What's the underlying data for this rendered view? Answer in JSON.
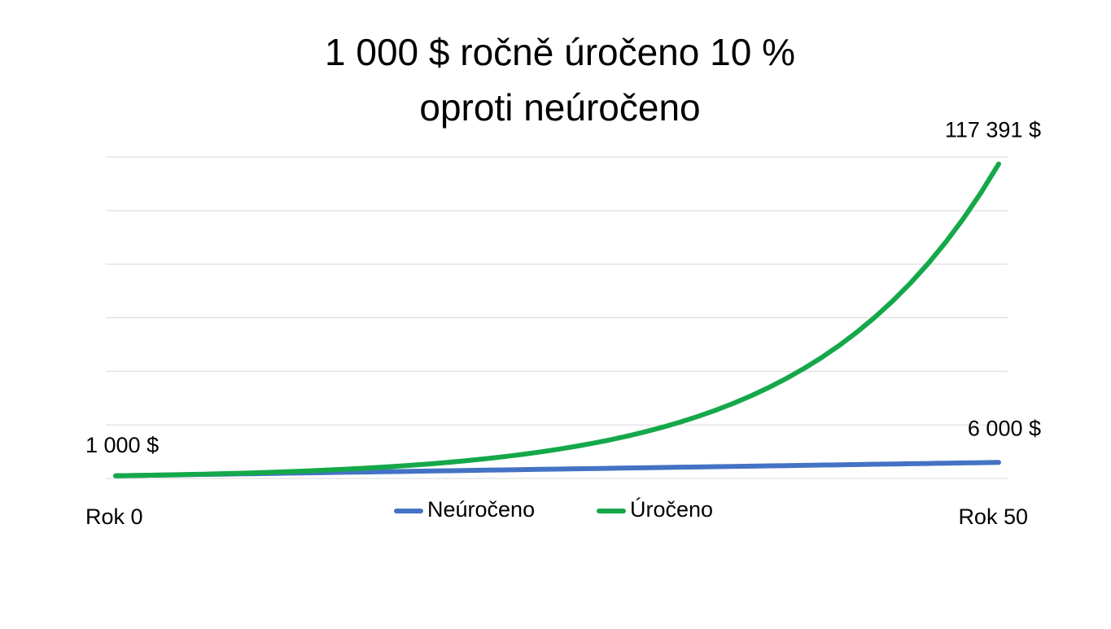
{
  "chart_data": {
    "type": "line",
    "title": [
      "1 000 $ ročně úročeno 10 %",
      "oproti neúročeno"
    ],
    "categories": [
      "Rok 0",
      null,
      null,
      null,
      null,
      null,
      null,
      null,
      null,
      null,
      null,
      null,
      null,
      null,
      null,
      null,
      null,
      null,
      null,
      null,
      null,
      null,
      null,
      null,
      null,
      null,
      null,
      null,
      null,
      null,
      null,
      null,
      null,
      null,
      null,
      null,
      null,
      null,
      null,
      null,
      null,
      null,
      null,
      null,
      null,
      null,
      null,
      null,
      null,
      null,
      "Rok 50"
    ],
    "series": [
      {
        "name": "Neúročeno",
        "color": "#4472c4",
        "values": [
          1000,
          1100,
          1200,
          1300,
          1400,
          1500,
          1600,
          1700,
          1800,
          1900,
          2000,
          2100,
          2200,
          2300,
          2400,
          2500,
          2600,
          2700,
          2800,
          2900,
          3000,
          3100,
          3200,
          3300,
          3400,
          3500,
          3600,
          3700,
          3800,
          3900,
          4000,
          4100,
          4200,
          4300,
          4400,
          4500,
          4600,
          4700,
          4800,
          4900,
          5000,
          5100,
          5200,
          5300,
          5400,
          5500,
          5600,
          5700,
          5800,
          5900,
          6000
        ],
        "value_labels": [
          "1 000 $",
          null,
          null,
          null,
          null,
          null,
          null,
          null,
          null,
          null,
          null,
          null,
          null,
          null,
          null,
          null,
          null,
          null,
          null,
          null,
          null,
          null,
          null,
          null,
          null,
          null,
          null,
          null,
          null,
          null,
          null,
          null,
          null,
          null,
          null,
          null,
          null,
          null,
          null,
          null,
          null,
          null,
          null,
          null,
          null,
          null,
          null,
          null,
          null,
          null,
          "6 000 $"
        ]
      },
      {
        "name": "Úročeno",
        "color": "#15a84a",
        "values": [
          1000,
          1100,
          1210,
          1331,
          1464,
          1611,
          1772,
          1949,
          2144,
          2358,
          2594,
          2853,
          3138,
          3452,
          3797,
          4177,
          4595,
          5054,
          5560,
          6116,
          6727,
          7400,
          8140,
          8954,
          9850,
          10835,
          11918,
          13110,
          14421,
          15863,
          17449,
          19194,
          21114,
          23225,
          25548,
          28102,
          30913,
          34004,
          37404,
          41145,
          45259,
          49785,
          54764,
          60240,
          66264,
          72890,
          80180,
          88197,
          97017,
          106719,
          117391
        ],
        "value_labels": [
          null,
          null,
          null,
          null,
          null,
          null,
          null,
          null,
          null,
          null,
          null,
          null,
          null,
          null,
          null,
          null,
          null,
          null,
          null,
          null,
          null,
          null,
          null,
          null,
          null,
          null,
          null,
          null,
          null,
          null,
          null,
          null,
          null,
          null,
          null,
          null,
          null,
          null,
          null,
          null,
          null,
          null,
          null,
          null,
          null,
          null,
          null,
          null,
          null,
          null,
          "117 391 $"
        ]
      }
    ],
    "ylim": [
      0,
      120000
    ],
    "yticks": [
      0,
      20000,
      40000,
      60000,
      80000,
      100000,
      120000
    ],
    "grid": true
  }
}
